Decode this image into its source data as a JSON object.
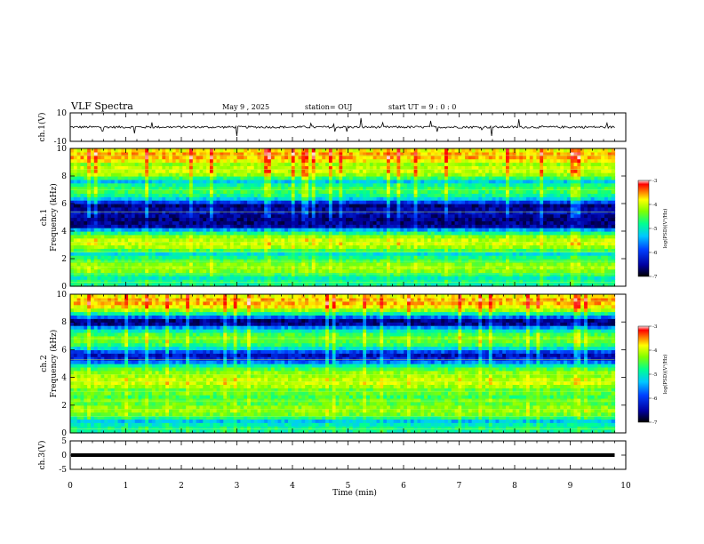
{
  "chart_data": {
    "type": "heatmap",
    "title": "VLF Spectra",
    "date": "May 9 , 2025",
    "station": "station= OUJ",
    "start_time": "start  UT =  9 : 0  : 0",
    "xlabel": "Time  (min)",
    "xlim": [
      0,
      10
    ],
    "x_ticks": [
      "0",
      "1",
      "2",
      "3",
      "4",
      "5",
      "6",
      "7",
      "8",
      "9",
      "10"
    ],
    "panels": [
      {
        "kind": "waveform",
        "ylabel": "ch.1(V)",
        "ylim": [
          -10,
          10
        ],
        "y_ticks": [
          "10",
          "-10"
        ],
        "data_end_min": 9.8
      },
      {
        "kind": "spectrogram",
        "ylabel_channel": "ch.1",
        "ylabel": "Frequency  (kHz)",
        "ylim": [
          0,
          10
        ],
        "y_ticks": [
          "0",
          "2",
          "4",
          "6",
          "8",
          "10"
        ],
        "data_end_min": 9.8,
        "colorbar": {
          "label": "log(PSD)(V²/Hz)",
          "range": [
            -7,
            -3
          ],
          "ticks": [
            "-3",
            "-4",
            "-5",
            "-6",
            "-7"
          ]
        },
        "bands_khz": [
          0.3,
          0.9,
          1.4,
          1.8,
          2.5,
          3.2,
          5.4,
          7.0,
          8.5,
          9.5
        ],
        "band_levels": [
          -5.0,
          -5.2,
          -4.4,
          -4.8,
          -5.4,
          -4.2,
          -6.4,
          -4.8,
          -4.2,
          -3.8
        ]
      },
      {
        "kind": "spectrogram",
        "ylabel_channel": "ch.2",
        "ylabel": "Frequency  (kHz)",
        "ylim": [
          0,
          10
        ],
        "y_ticks": [
          "0",
          "2",
          "4",
          "6",
          "8",
          "10"
        ],
        "data_end_min": 9.8,
        "colorbar": {
          "label": "log(PSD)(V²/Hz)",
          "range": [
            -7,
            -3
          ],
          "ticks": [
            "-3",
            "-4",
            "-5",
            "-6",
            "-7"
          ]
        },
        "bands_khz": [
          0.3,
          1.2,
          1.7,
          2.3,
          3.0,
          3.7,
          4.2,
          5.3,
          6.8,
          9.5
        ],
        "band_levels": [
          -5.0,
          -5.3,
          -4.4,
          -4.6,
          -4.6,
          -4.2,
          -4.4,
          -6.2,
          -4.6,
          -3.8
        ]
      },
      {
        "kind": "waveform",
        "ylabel": "ch.3(V)",
        "ylim": [
          -5,
          5
        ],
        "y_ticks": [
          "5",
          "0",
          "-5"
        ],
        "constant_value": 0,
        "data_end_min": 9.8
      }
    ]
  }
}
